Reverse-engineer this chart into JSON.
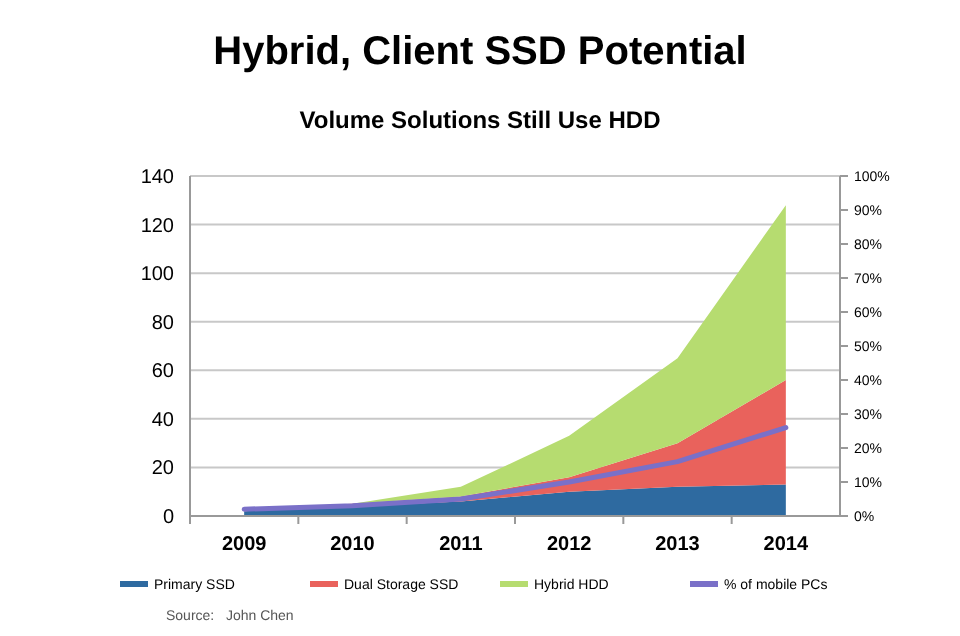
{
  "chart_data": {
    "type": "area",
    "title": "Hybrid, Client SSD Potential",
    "subtitle": "Volume Solutions Still Use HDD",
    "categories": [
      "2009",
      "2010",
      "2011",
      "2012",
      "2013",
      "2014"
    ],
    "stacked": true,
    "series": [
      {
        "name": "Primary SSD",
        "color": "#2e6aa0",
        "values": [
          2,
          4,
          6,
          10,
          12,
          13
        ]
      },
      {
        "name": "Dual Storage SSD",
        "color": "#e9625c",
        "values": [
          1,
          1,
          2,
          6,
          18,
          43
        ]
      },
      {
        "name": "Hybrid HDD",
        "color": "#b6dc70",
        "values": [
          0,
          0,
          4,
          17,
          35,
          72
        ]
      },
      {
        "name": "% of mobile PCs",
        "type": "line",
        "axis": "y2",
        "color": "#7a70c8",
        "values": [
          2,
          3,
          5,
          10,
          16,
          26
        ]
      }
    ],
    "ylim": [
      0,
      140
    ],
    "yticks": [
      0,
      20,
      40,
      60,
      80,
      100,
      120,
      140
    ],
    "y2lim": [
      0,
      100
    ],
    "y2ticks": [
      {
        "value": 0,
        "label": "0%"
      },
      {
        "value": 10,
        "label": "10%"
      },
      {
        "value": 20,
        "label": "20%"
      },
      {
        "value": 30,
        "label": "30%"
      },
      {
        "value": 40,
        "label": "40%"
      },
      {
        "value": 50,
        "label": "50%"
      },
      {
        "value": 60,
        "label": "60%"
      },
      {
        "value": 70,
        "label": "70%"
      },
      {
        "value": 80,
        "label": "80%"
      },
      {
        "value": 90,
        "label": "90%"
      },
      {
        "value": 100,
        "label": "100%"
      }
    ],
    "grid": "y",
    "legend": "bottom",
    "annotations": [
      "Source:   John Chen"
    ]
  }
}
